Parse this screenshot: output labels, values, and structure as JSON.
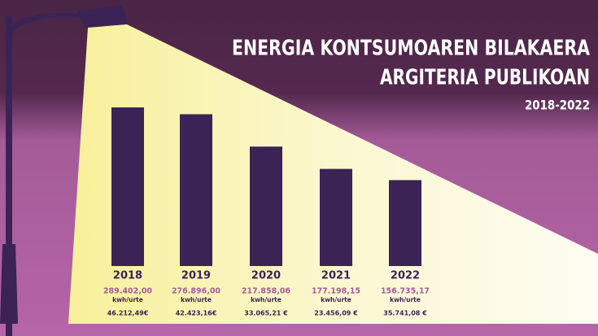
{
  "chart_data": {
    "type": "bar",
    "title": [
      "ENERGIA KONTSUMOAREN BILAKAERA",
      "ARGITERIA PUBLIKOAN"
    ],
    "subtitle": "2018-2022",
    "categories": [
      "2018",
      "2019",
      "2020",
      "2021",
      "2022"
    ],
    "values": [
      289402.0,
      276896.0,
      217858.06,
      177198.15,
      156735.17
    ],
    "value_labels": [
      "289.402,00",
      "276.896,00",
      "217.858,06",
      "177.198,15",
      "156.735,17"
    ],
    "unit_label": "kwh/urte",
    "cost_values": [
      46212.49,
      42423.16,
      33065.21,
      23456.09,
      35741.08
    ],
    "cost_labels": [
      "46.212,49€",
      "42.423,16€",
      "33.065,21 €",
      "23.456,09 €",
      "35.741,08 €"
    ],
    "color": "#3b2356"
  }
}
